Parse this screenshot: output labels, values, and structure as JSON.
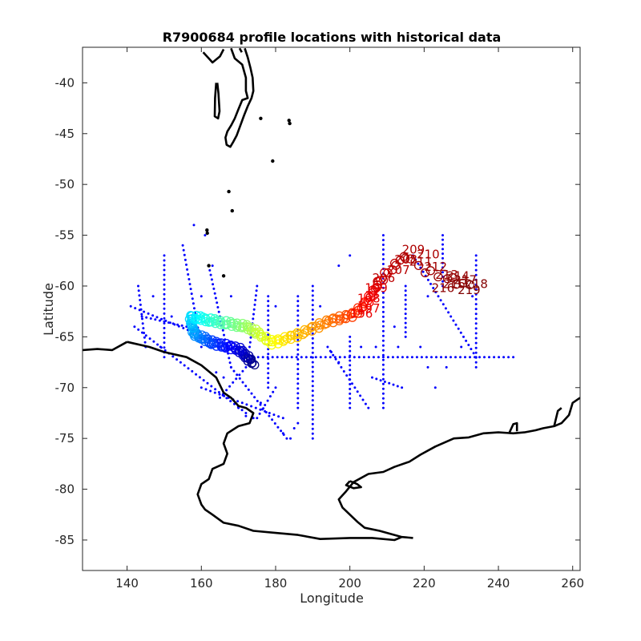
{
  "chart_data": {
    "type": "scatter",
    "title": "R7900684 profile locations with historical data",
    "xlabel": "Longitude",
    "ylabel": "Latitude",
    "xlim": [
      128,
      262
    ],
    "ylim": [
      -88,
      -36.5
    ],
    "xticks": [
      140,
      160,
      180,
      200,
      220,
      240,
      260
    ],
    "yticks": [
      -40,
      -45,
      -50,
      -55,
      -60,
      -65,
      -70,
      -75,
      -80,
      -85
    ],
    "grid": false,
    "legend": "none",
    "colors": {
      "historical": "#0000ff",
      "coastline": "#000000",
      "float_start": "#00008f",
      "float_end": "#800000"
    },
    "float_track": {
      "colormap": "jet",
      "profile_count": 219,
      "waypoints": [
        {
          "profile": 1,
          "lon": 174,
          "lat": -67.6
        },
        {
          "profile": 20,
          "lon": 170,
          "lat": -66.2
        },
        {
          "profile": 40,
          "lon": 163,
          "lat": -65.6
        },
        {
          "profile": 60,
          "lon": 158,
          "lat": -64.7
        },
        {
          "profile": 75,
          "lon": 157,
          "lat": -63.0
        },
        {
          "profile": 95,
          "lon": 164,
          "lat": -63.5
        },
        {
          "profile": 115,
          "lon": 172,
          "lat": -64.0
        },
        {
          "profile": 125,
          "lon": 175,
          "lat": -64.6
        },
        {
          "profile": 135,
          "lon": 179,
          "lat": -65.6
        },
        {
          "profile": 150,
          "lon": 186,
          "lat": -64.8
        },
        {
          "profile": 165,
          "lon": 194,
          "lat": -63.5
        },
        {
          "profile": 180,
          "lon": 201,
          "lat": -62.8
        },
        {
          "profile": 190,
          "lon": 205,
          "lat": -61.4
        },
        {
          "profile": 200,
          "lon": 208,
          "lat": -59.5
        },
        {
          "profile": 205,
          "lon": 212,
          "lat": -58.0
        },
        {
          "profile": 209,
          "lon": 215,
          "lat": -57.0
        },
        {
          "profile": 212,
          "lon": 220,
          "lat": -58.5
        },
        {
          "profile": 215,
          "lon": 226,
          "lat": -59.2
        },
        {
          "profile": 219,
          "lon": 232,
          "lat": -60.0
        }
      ],
      "labels": [
        {
          "text": "209",
          "lon": 214,
          "lat": -56.8
        },
        {
          "text": "210",
          "lon": 218,
          "lat": -57.3
        },
        {
          "text": "208",
          "lon": 212,
          "lat": -57.8
        },
        {
          "text": "211",
          "lon": 216,
          "lat": -58.0
        },
        {
          "text": "212",
          "lon": 220,
          "lat": -58.5
        },
        {
          "text": "207",
          "lon": 210,
          "lat": -58.8
        },
        {
          "text": "206",
          "lon": 206,
          "lat": -59.6
        },
        {
          "text": "213",
          "lon": 223,
          "lat": -59.3
        },
        {
          "text": "214",
          "lon": 226,
          "lat": -59.4
        },
        {
          "text": "215",
          "lon": 225,
          "lat": -60.2
        },
        {
          "text": "216",
          "lon": 222,
          "lat": -60.6
        },
        {
          "text": "217",
          "lon": 228,
          "lat": -59.8
        },
        {
          "text": "218",
          "lon": 231,
          "lat": -60.2
        },
        {
          "text": "219",
          "lon": 229,
          "lat": -60.8
        },
        {
          "text": "199",
          "lon": 204,
          "lat": -60.6
        },
        {
          "text": "198",
          "lon": 202,
          "lat": -61.6
        },
        {
          "text": "197",
          "lon": 202,
          "lat": -62.6
        },
        {
          "text": "196",
          "lon": 200,
          "lat": -63.1
        }
      ]
    },
    "historical_segments": [
      [
        [
          174,
          -67
        ],
        [
          244,
          -67
        ]
      ],
      [
        [
          141,
          -62
        ],
        [
          174,
          -67
        ]
      ],
      [
        [
          142,
          -64
        ],
        [
          172,
          -72.5
        ]
      ],
      [
        [
          150,
          -57
        ],
        [
          150,
          -67
        ]
      ],
      [
        [
          155,
          -56
        ],
        [
          160,
          -66
        ]
      ],
      [
        [
          162,
          -58
        ],
        [
          168,
          -68
        ]
      ],
      [
        [
          175,
          -60
        ],
        [
          173,
          -66
        ]
      ],
      [
        [
          190,
          -60
        ],
        [
          190,
          -75
        ]
      ],
      [
        [
          209,
          -55
        ],
        [
          209,
          -72
        ]
      ],
      [
        [
          215,
          -60
        ],
        [
          215,
          -65
        ]
      ],
      [
        [
          225,
          -55
        ],
        [
          225,
          -60
        ]
      ],
      [
        [
          234,
          -57
        ],
        [
          234,
          -68
        ]
      ],
      [
        [
          217,
          -57
        ],
        [
          234,
          -67
        ]
      ],
      [
        [
          186,
          -61
        ],
        [
          186,
          -72
        ]
      ],
      [
        [
          178,
          -61
        ],
        [
          178,
          -70
        ]
      ],
      [
        [
          143,
          -60
        ],
        [
          145,
          -66
        ]
      ],
      [
        [
          200,
          -65
        ],
        [
          200,
          -72
        ]
      ],
      [
        [
          194,
          -66
        ],
        [
          205,
          -72
        ]
      ],
      [
        [
          160,
          -70
        ],
        [
          182,
          -73
        ]
      ],
      [
        [
          168,
          -68
        ],
        [
          183,
          -75
        ]
      ],
      [
        [
          144,
          -63
        ],
        [
          156,
          -64
        ]
      ],
      [
        [
          175,
          -73
        ],
        [
          180,
          -70
        ]
      ],
      [
        [
          165,
          -71
        ],
        [
          172,
          -68
        ]
      ],
      [
        [
          206,
          -69
        ],
        [
          214,
          -70
        ]
      ]
    ],
    "historical_points": [
      [
        158,
        -54
      ],
      [
        161,
        -55
      ],
      [
        163,
        -58
      ],
      [
        166,
        -59
      ],
      [
        160,
        -61
      ],
      [
        185,
        -74
      ],
      [
        184,
        -75
      ],
      [
        182,
        -74.5
      ],
      [
        186,
        -73.5
      ],
      [
        170,
        -72
      ],
      [
        172,
        -72.8
      ],
      [
        174,
        -73
      ],
      [
        176,
        -71.5
      ],
      [
        152,
        -63
      ],
      [
        147,
        -61
      ],
      [
        164,
        -68.5
      ],
      [
        166,
        -69
      ],
      [
        212,
        -64
      ],
      [
        213,
        -66
      ],
      [
        219,
        -66
      ],
      [
        221,
        -68
      ],
      [
        223,
        -70
      ],
      [
        226,
        -68
      ],
      [
        230,
        -66
      ],
      [
        203,
        -66
      ],
      [
        207,
        -66
      ],
      [
        197,
        -58
      ],
      [
        200,
        -57
      ],
      [
        192,
        -62
      ],
      [
        195,
        -66.5
      ],
      [
        197,
        -67.5
      ],
      [
        233,
        -61
      ],
      [
        221,
        -61
      ],
      [
        180,
        -62
      ],
      [
        168,
        -61
      ],
      [
        149,
        -66
      ]
    ],
    "coastlines": [
      [
        [
          140,
          -65.5
        ],
        [
          146,
          -66
        ],
        [
          150,
          -66.5
        ],
        [
          156,
          -67
        ],
        [
          160,
          -67.8
        ],
        [
          164,
          -69
        ],
        [
          166,
          -70.5
        ],
        [
          168,
          -71
        ],
        [
          170,
          -71.8
        ],
        [
          172,
          -72
        ],
        [
          174,
          -72.5
        ],
        [
          173,
          -73.5
        ],
        [
          170,
          -73.8
        ],
        [
          167,
          -74.5
        ],
        [
          166,
          -75.5
        ],
        [
          167,
          -76.5
        ],
        [
          166,
          -77.5
        ],
        [
          163,
          -78
        ],
        [
          162,
          -79
        ],
        [
          160,
          -79.5
        ],
        [
          159,
          -80.5
        ],
        [
          160,
          -81.5
        ],
        [
          161,
          -82
        ],
        [
          163,
          -82.5
        ],
        [
          166,
          -83.3
        ],
        [
          170,
          -83.6
        ],
        [
          174,
          -84.1
        ],
        [
          180,
          -84.3
        ],
        [
          186,
          -84.5
        ],
        [
          192,
          -84.9
        ],
        [
          200,
          -84.8
        ],
        [
          206,
          -84.8
        ],
        [
          212,
          -85
        ],
        [
          214,
          -84.7
        ],
        [
          211,
          -84.4
        ],
        [
          208,
          -84.1
        ],
        [
          204,
          -83.8
        ],
        [
          202,
          -83.2
        ],
        [
          200,
          -82.5
        ],
        [
          198,
          -81.8
        ],
        [
          197,
          -81
        ],
        [
          199,
          -80.2
        ],
        [
          201,
          -79.3
        ],
        [
          205,
          -78.5
        ],
        [
          209,
          -78.3
        ],
        [
          212,
          -77.8
        ],
        [
          216,
          -77.3
        ],
        [
          219,
          -76.6
        ],
        [
          223,
          -75.8
        ],
        [
          228,
          -75
        ],
        [
          232,
          -74.9
        ],
        [
          236,
          -74.5
        ],
        [
          240,
          -74.4
        ],
        [
          244,
          -74.5
        ],
        [
          247,
          -74.4
        ],
        [
          250,
          -74.2
        ],
        [
          252,
          -74
        ],
        [
          255,
          -73.8
        ],
        [
          257,
          -73.5
        ],
        [
          259,
          -72.7
        ],
        [
          260,
          -71.5
        ],
        [
          262,
          -71
        ]
      ],
      [
        [
          128,
          -66.3
        ],
        [
          132,
          -66.2
        ],
        [
          136,
          -66.3
        ],
        [
          140,
          -65.5
        ]
      ],
      [
        [
          214,
          -84.7
        ],
        [
          217,
          -84.8
        ]
      ],
      [
        [
          200,
          -79.2
        ],
        [
          202,
          -79.5
        ],
        [
          203,
          -79.8
        ],
        [
          201,
          -79.9
        ],
        [
          199,
          -79.6
        ],
        [
          200,
          -79.2
        ]
      ],
      [
        [
          243,
          -74.4
        ],
        [
          244,
          -73.6
        ],
        [
          245,
          -73.5
        ],
        [
          245,
          -74.3
        ]
      ],
      [
        [
          255,
          -73.8
        ],
        [
          256,
          -72.3
        ],
        [
          257,
          -72
        ]
      ],
      [
        [
          160.5,
          -37
        ],
        [
          162,
          -37.6
        ],
        [
          163,
          -38
        ],
        [
          165,
          -37.4
        ],
        [
          166,
          -36.7
        ]
      ],
      [
        [
          168,
          -36.6
        ],
        [
          169,
          -37.6
        ],
        [
          171,
          -38.2
        ],
        [
          172,
          -39.5
        ],
        [
          172,
          -40.8
        ],
        [
          172.5,
          -41.5
        ],
        [
          171,
          -41.7
        ],
        [
          170,
          -42.6
        ],
        [
          169,
          -43.5
        ],
        [
          168,
          -44.2
        ],
        [
          167,
          -44.8
        ],
        [
          166.5,
          -45.4
        ],
        [
          166.8,
          -46.1
        ],
        [
          167.8,
          -46.3
        ],
        [
          168.6,
          -45.8
        ],
        [
          169.5,
          -45.2
        ],
        [
          170.5,
          -44.2
        ],
        [
          171.5,
          -43.2
        ],
        [
          172.5,
          -42.3
        ],
        [
          173.5,
          -41.5
        ],
        [
          174,
          -40.8
        ],
        [
          173.8,
          -39.5
        ],
        [
          173.2,
          -38.5
        ],
        [
          172.5,
          -37.5
        ],
        [
          171.7,
          -36.6
        ]
      ],
      [
        [
          170.3,
          -36.6
        ],
        [
          170.9,
          -37
        ]
      ],
      [
        [
          164,
          -40
        ],
        [
          163.7,
          -41.5
        ],
        [
          163.6,
          -43.3
        ],
        [
          164.5,
          -43.5
        ],
        [
          164.9,
          -42.8
        ],
        [
          164.6,
          -41
        ],
        [
          164.3,
          -40
        ]
      ]
    ],
    "islands": [
      [
        183.6,
        -43.7
      ],
      [
        183.8,
        -44.0
      ],
      [
        176,
        -43.5
      ],
      [
        179.2,
        -47.7
      ],
      [
        167.4,
        -50.7
      ],
      [
        168.3,
        -52.6
      ],
      [
        161.5,
        -54.5
      ],
      [
        161.6,
        -54.8
      ],
      [
        162,
        -58
      ],
      [
        166,
        -59
      ]
    ]
  }
}
